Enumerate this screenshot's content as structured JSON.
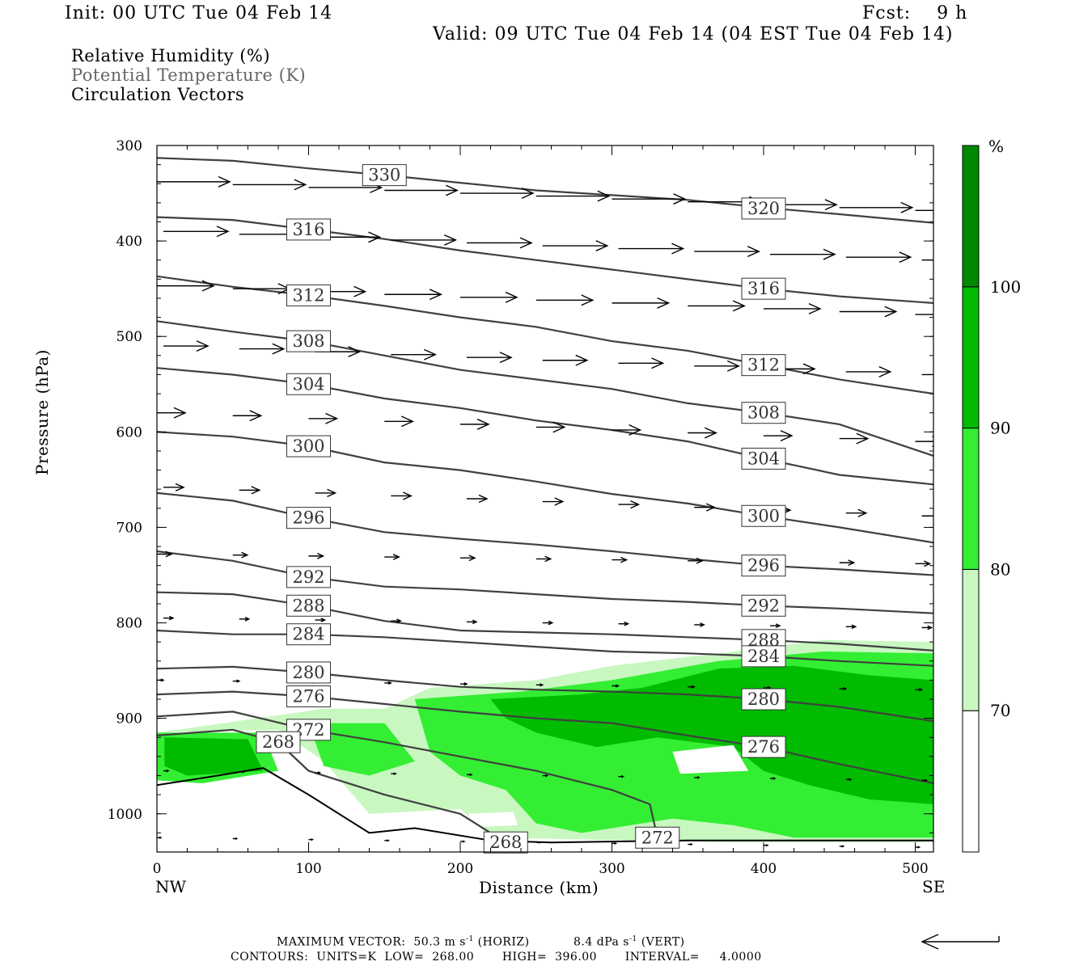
{
  "header": {
    "init": "Init: 00 UTC Tue 04 Feb 14",
    "fcst": "Fcst:    9 h",
    "valid": "Valid: 09 UTC Tue 04 Feb 14 (04 EST Tue 04 Feb 14)"
  },
  "legend": {
    "line1": "Relative Humidity (%)",
    "line2": "Potential Temperature (K)",
    "line3": "Circulation Vectors"
  },
  "footer": {
    "max_vector": "MAXIMUM VECTOR:  50.3 m s",
    "horiz_exp": "-1",
    "horiz_tail": " (HORIZ)",
    "vert_head": "8.4 dPa s",
    "vert_exp": "-1",
    "vert_tail": " (VERT)",
    "contours": "CONTOURS:  UNITS=K  LOW=  268.00       HIGH=  396.00       INTERVAL=     4.0000"
  },
  "chart_data": {
    "type": "cross-section",
    "xlabel": "Distance (km)",
    "ylabel": "Pressure (hPa)",
    "xlim": [
      0,
      512
    ],
    "ylim": [
      1040,
      300
    ],
    "x_ticks": [
      0,
      100,
      200,
      300,
      400,
      500
    ],
    "y_ticks": [
      300,
      400,
      500,
      600,
      700,
      800,
      900,
      1000
    ],
    "x_end_labels": [
      "NW",
      "SE"
    ],
    "colorbar": {
      "unit": "%",
      "levels": [
        70,
        80,
        90,
        100
      ],
      "colors": [
        "#ffffff",
        "#c8f7c0",
        "#33ee33",
        "#00bb00",
        "#008800"
      ]
    },
    "theta_contours": [
      {
        "label": "330",
        "points": [
          [
            0,
            313
          ],
          [
            50,
            316
          ],
          [
            100,
            324
          ],
          [
            150,
            331
          ],
          [
            200,
            339
          ],
          [
            250,
            347
          ],
          [
            300,
            352
          ],
          [
            350,
            357
          ],
          [
            400,
            365
          ],
          [
            450,
            372
          ],
          [
            512,
            381
          ]
        ]
      },
      {
        "label": "320",
        "points": [
          [
            0,
            313
          ],
          [
            100,
            323
          ],
          [
            200,
            339
          ],
          [
            300,
            354
          ],
          [
            400,
            366
          ],
          [
            512,
            381
          ]
        ],
        "hidden": true
      },
      {
        "label": "316",
        "points": [
          [
            0,
            375
          ],
          [
            50,
            378
          ],
          [
            100,
            388
          ],
          [
            150,
            398
          ],
          [
            200,
            410
          ],
          [
            250,
            420
          ],
          [
            300,
            430
          ],
          [
            350,
            440
          ],
          [
            400,
            450
          ],
          [
            450,
            458
          ],
          [
            512,
            465
          ]
        ]
      },
      {
        "label": "312",
        "points": [
          [
            0,
            437
          ],
          [
            50,
            448
          ],
          [
            100,
            457
          ],
          [
            150,
            468
          ],
          [
            200,
            480
          ],
          [
            250,
            490
          ],
          [
            300,
            505
          ],
          [
            350,
            515
          ],
          [
            400,
            530
          ],
          [
            450,
            545
          ],
          [
            512,
            560
          ]
        ]
      },
      {
        "label": "308",
        "points": [
          [
            0,
            484
          ],
          [
            50,
            495
          ],
          [
            100,
            505
          ],
          [
            150,
            520
          ],
          [
            200,
            535
          ],
          [
            250,
            545
          ],
          [
            300,
            555
          ],
          [
            350,
            570
          ],
          [
            400,
            580
          ],
          [
            450,
            592
          ],
          [
            512,
            625
          ]
        ]
      },
      {
        "label": "304",
        "points": [
          [
            0,
            533
          ],
          [
            50,
            540
          ],
          [
            100,
            550
          ],
          [
            150,
            565
          ],
          [
            200,
            575
          ],
          [
            250,
            588
          ],
          [
            300,
            598
          ],
          [
            350,
            610
          ],
          [
            400,
            628
          ],
          [
            450,
            645
          ],
          [
            512,
            655
          ]
        ]
      },
      {
        "label": "300",
        "points": [
          [
            0,
            600
          ],
          [
            50,
            605
          ],
          [
            100,
            615
          ],
          [
            150,
            632
          ],
          [
            200,
            640
          ],
          [
            250,
            652
          ],
          [
            300,
            665
          ],
          [
            350,
            675
          ],
          [
            400,
            688
          ],
          [
            450,
            700
          ],
          [
            512,
            716
          ]
        ]
      },
      {
        "label": "296",
        "points": [
          [
            0,
            664
          ],
          [
            50,
            672
          ],
          [
            100,
            690
          ],
          [
            150,
            705
          ],
          [
            200,
            712
          ],
          [
            250,
            718
          ],
          [
            300,
            725
          ],
          [
            350,
            733
          ],
          [
            400,
            740
          ],
          [
            450,
            744
          ],
          [
            512,
            750
          ]
        ]
      },
      {
        "label": "292",
        "points": [
          [
            0,
            725
          ],
          [
            50,
            735
          ],
          [
            100,
            752
          ],
          [
            150,
            762
          ],
          [
            200,
            765
          ],
          [
            250,
            770
          ],
          [
            300,
            775
          ],
          [
            350,
            778
          ],
          [
            400,
            782
          ],
          [
            450,
            785
          ],
          [
            512,
            790
          ]
        ]
      },
      {
        "label": "288",
        "points": [
          [
            0,
            768
          ],
          [
            50,
            770
          ],
          [
            100,
            782
          ],
          [
            150,
            798
          ],
          [
            200,
            808
          ],
          [
            250,
            810
          ],
          [
            300,
            812
          ],
          [
            350,
            815
          ],
          [
            400,
            818
          ],
          [
            450,
            822
          ],
          [
            512,
            829
          ]
        ]
      },
      {
        "label": "284",
        "points": [
          [
            0,
            808
          ],
          [
            50,
            812
          ],
          [
            100,
            812
          ],
          [
            150,
            815
          ],
          [
            200,
            820
          ],
          [
            250,
            825
          ],
          [
            300,
            830
          ],
          [
            350,
            832
          ],
          [
            400,
            835
          ],
          [
            450,
            840
          ],
          [
            512,
            845
          ]
        ]
      },
      {
        "label": "280",
        "points": [
          [
            0,
            848
          ],
          [
            50,
            846
          ],
          [
            100,
            852
          ],
          [
            150,
            860
          ],
          [
            200,
            867
          ],
          [
            250,
            870
          ],
          [
            300,
            872
          ],
          [
            350,
            875
          ],
          [
            400,
            880
          ],
          [
            450,
            888
          ],
          [
            512,
            903
          ]
        ]
      },
      {
        "label": "276",
        "points": [
          [
            0,
            875
          ],
          [
            50,
            872
          ],
          [
            100,
            877
          ],
          [
            150,
            885
          ],
          [
            200,
            893
          ],
          [
            250,
            900
          ],
          [
            300,
            905
          ],
          [
            350,
            918
          ],
          [
            400,
            930
          ],
          [
            450,
            948
          ],
          [
            512,
            968
          ]
        ]
      },
      {
        "label": "272",
        "points": [
          [
            0,
            898
          ],
          [
            50,
            893
          ],
          [
            100,
            912
          ],
          [
            150,
            925
          ],
          [
            200,
            940
          ],
          [
            250,
            955
          ],
          [
            300,
            975
          ],
          [
            325,
            990
          ],
          [
            330,
            1025
          ]
        ]
      },
      {
        "label": "268",
        "points": [
          [
            0,
            918
          ],
          [
            50,
            912
          ],
          [
            80,
            925
          ],
          [
            100,
            955
          ],
          [
            150,
            980
          ],
          [
            200,
            1000
          ],
          [
            230,
            1030
          ]
        ]
      }
    ],
    "terrain": [
      [
        0,
        970
      ],
      [
        40,
        960
      ],
      [
        70,
        952
      ],
      [
        100,
        980
      ],
      [
        140,
        1020
      ],
      [
        170,
        1015
      ],
      [
        220,
        1028
      ],
      [
        260,
        1030
      ],
      [
        350,
        1028
      ],
      [
        512,
        1028
      ]
    ],
    "rh_regions": [
      {
        "level": 70,
        "points": [
          [
            0,
            915
          ],
          [
            80,
            912
          ],
          [
            110,
            945
          ],
          [
            140,
            1000
          ],
          [
            200,
            995
          ],
          [
            220,
            1025
          ],
          [
            380,
            1030
          ],
          [
            512,
            1030
          ],
          [
            512,
            820
          ],
          [
            440,
            818
          ],
          [
            380,
            830
          ],
          [
            300,
            845
          ],
          [
            250,
            860
          ],
          [
            180,
            868
          ],
          [
            150,
            890
          ],
          [
            110,
            890
          ]
        ]
      },
      {
        "level": 80,
        "points": [
          [
            0,
            915
          ],
          [
            70,
            915
          ],
          [
            80,
            955
          ],
          [
            30,
            968
          ],
          [
            0,
            965
          ]
        ]
      },
      {
        "level": 80,
        "points": [
          [
            100,
            905
          ],
          [
            150,
            905
          ],
          [
            170,
            945
          ],
          [
            140,
            960
          ],
          [
            110,
            950
          ]
        ]
      },
      {
        "level": 80,
        "points": [
          [
            170,
            880
          ],
          [
            240,
            872
          ],
          [
            300,
            860
          ],
          [
            370,
            840
          ],
          [
            440,
            830
          ],
          [
            512,
            832
          ],
          [
            512,
            1025
          ],
          [
            420,
            1025
          ],
          [
            380,
            1012
          ],
          [
            340,
            1005
          ],
          [
            280,
            1020
          ],
          [
            250,
            1010
          ],
          [
            230,
            975
          ],
          [
            200,
            960
          ],
          [
            180,
            935
          ]
        ]
      },
      {
        "level": 90,
        "points": [
          [
            5,
            920
          ],
          [
            60,
            922
          ],
          [
            70,
            955
          ],
          [
            20,
            960
          ],
          [
            5,
            950
          ]
        ]
      },
      {
        "level": 90,
        "points": [
          [
            220,
            880
          ],
          [
            280,
            875
          ],
          [
            320,
            868
          ],
          [
            370,
            848
          ],
          [
            420,
            845
          ],
          [
            470,
            855
          ],
          [
            512,
            860
          ],
          [
            512,
            990
          ],
          [
            470,
            985
          ],
          [
            430,
            970
          ],
          [
            400,
            955
          ],
          [
            380,
            930
          ],
          [
            330,
            920
          ],
          [
            290,
            930
          ],
          [
            250,
            915
          ],
          [
            230,
            900
          ]
        ]
      }
    ],
    "rh_white_holes": [
      {
        "points": [
          [
            340,
            935
          ],
          [
            380,
            928
          ],
          [
            390,
            955
          ],
          [
            345,
            958
          ]
        ]
      },
      {
        "points": [
          [
            205,
            1000
          ],
          [
            235,
            998
          ],
          [
            238,
            1012
          ],
          [
            210,
            1014
          ]
        ]
      }
    ],
    "vectors_hint": "circulation vectors pointing mainly eastward (to the right)",
    "max_vector_horiz": "50.3",
    "max_vector_vert": "8.4"
  }
}
